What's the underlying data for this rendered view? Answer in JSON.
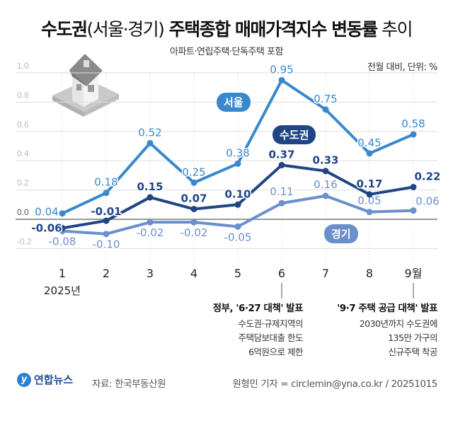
{
  "header": {
    "title_bold_1": "수도권",
    "title_light_1": "(서울·경기)",
    "title_bold_2": " 주택종합 매매가격지수 변동률",
    "title_light_2": " 추이",
    "subtitle": "아파트·연립주택·단독주택 포함",
    "unit": "전월 대비, 단위: %"
  },
  "chart_data": {
    "type": "line",
    "categories": [
      "1",
      "2",
      "3",
      "4",
      "5",
      "6",
      "7",
      "8",
      "9월"
    ],
    "x_sublabel": "2025년",
    "ylim": [
      -0.2,
      1.0
    ],
    "yticks": [
      "1.0",
      "0.8",
      "0.6",
      "0.4",
      "0.2",
      "0.0",
      "-0.2"
    ],
    "grid": true,
    "series": [
      {
        "name": "서울",
        "color": "#3a88cc",
        "values": [
          0.04,
          0.18,
          0.52,
          0.25,
          0.38,
          0.95,
          0.75,
          0.45,
          0.58
        ],
        "labels": [
          "0.04",
          "0.18",
          "0.52",
          "0.25",
          "0.38",
          "0.95",
          "0.75",
          "0.45",
          "0.58"
        ]
      },
      {
        "name": "수도권",
        "color": "#1f4585",
        "values": [
          -0.06,
          -0.01,
          0.15,
          0.07,
          0.1,
          0.37,
          0.33,
          0.17,
          0.22
        ],
        "labels": [
          "-0.06",
          "-0.01",
          "0.15",
          "0.07",
          "0.10",
          "0.37",
          "0.33",
          "0.17",
          "0.22"
        ]
      },
      {
        "name": "경기",
        "color": "#6a8fcb",
        "values": [
          -0.08,
          -0.1,
          -0.02,
          -0.02,
          -0.05,
          0.11,
          0.16,
          0.05,
          0.06
        ],
        "labels": [
          "-0.08",
          "-0.10",
          "-0.02",
          "-0.02",
          "-0.05",
          "0.11",
          "0.16",
          "0.05",
          "0.06"
        ]
      }
    ]
  },
  "notes": [
    {
      "head": "정부, '6·27 대책' 발표",
      "lines": [
        "수도권·규제지역의",
        "주택담보대출 한도",
        "6억원으로 제한"
      ]
    },
    {
      "head": "'9·7 주택 공급 대책' 발표",
      "lines": [
        "2030년까지 수도권에",
        "135만 가구의",
        "신규주택 착공"
      ]
    }
  ],
  "footer": {
    "logo": "연합뉴스",
    "source": "자료: 한국부동산원",
    "credit": "원형민 기자 = circlemin@yna.co.kr / 20251015"
  }
}
